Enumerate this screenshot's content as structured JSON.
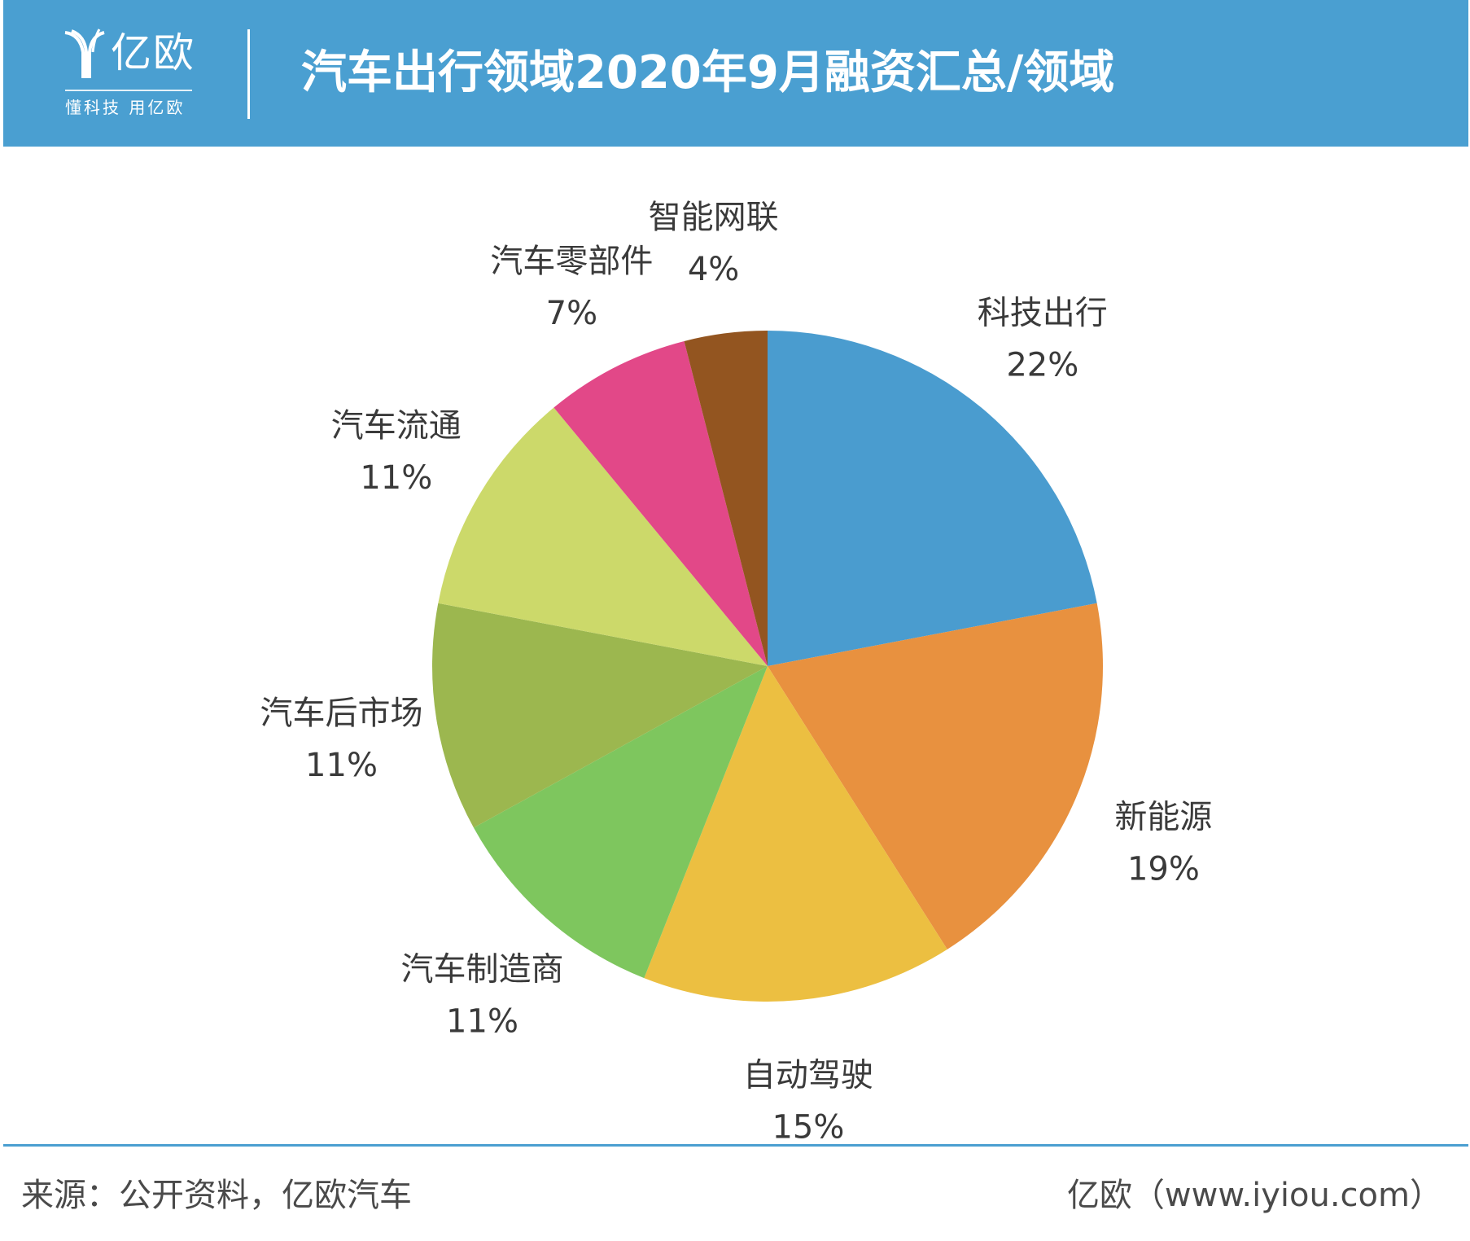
{
  "header": {
    "logo_name": "亿欧",
    "logo_tagline": "懂科技 用亿欧",
    "title": "汽车出行领域2020年9月融资汇总/领域"
  },
  "chart_data": {
    "type": "pie",
    "title": "汽车出行领域2020年9月融资汇总/领域",
    "slices": [
      {
        "label": "科技出行",
        "value": 22,
        "value_label": "22%",
        "color": "#4a9ccf"
      },
      {
        "label": "新能源",
        "value": 19,
        "value_label": "19%",
        "color": "#e8913f"
      },
      {
        "label": "自动驾驶",
        "value": 15,
        "value_label": "15%",
        "color": "#ecbf41"
      },
      {
        "label": "汽车制造商",
        "value": 11,
        "value_label": "11%",
        "color": "#7ec65e"
      },
      {
        "label": "汽车后市场",
        "value": 11,
        "value_label": "11%",
        "color": "#9cb74f"
      },
      {
        "label": "汽车流通",
        "value": 11,
        "value_label": "11%",
        "color": "#ccd96a"
      },
      {
        "label": "汽车零部件",
        "value": 7,
        "value_label": "7%",
        "color": "#e24888"
      },
      {
        "label": "智能网联",
        "value": 4,
        "value_label": "4%",
        "color": "#935520"
      }
    ],
    "start": "12 o'clock",
    "direction": "clockwise",
    "legend": "none"
  },
  "footer": {
    "source": "来源：公开资料，亿欧汽车",
    "credit": "亿欧（www.iyiou.com）"
  }
}
